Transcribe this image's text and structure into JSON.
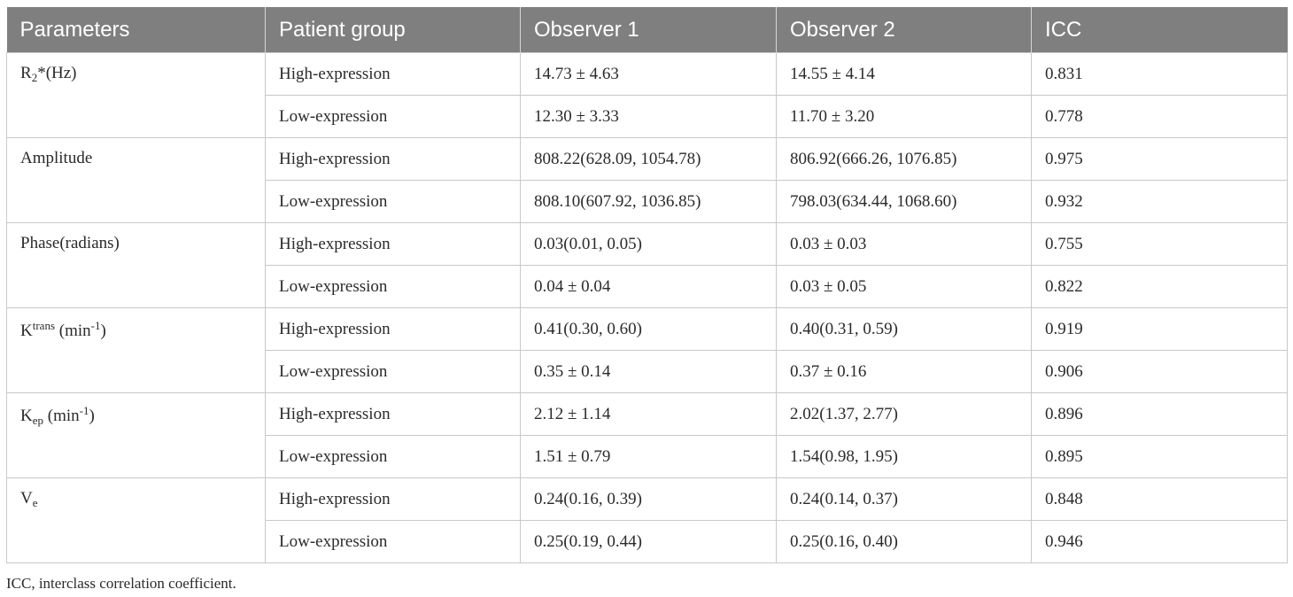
{
  "table": {
    "headers": [
      "Parameters",
      "Patient group",
      "Observer 1",
      "Observer 2",
      "ICC"
    ],
    "params": [
      {
        "base": "R",
        "sub": "2",
        "sup": "",
        "suffix": "*(Hz)"
      },
      {
        "base": "Amplitude",
        "sub": "",
        "sup": "",
        "suffix": ""
      },
      {
        "base": "Phase(radians)",
        "sub": "",
        "sup": "",
        "suffix": ""
      },
      {
        "base": "K",
        "sub": "",
        "sup": "trans",
        "suffix": " (min",
        "sup2": "-1",
        "suffix2": ")"
      },
      {
        "base": "K",
        "sub": "ep",
        "sup": "",
        "suffix": " (min",
        "sup2": "-1",
        "suffix2": ")"
      },
      {
        "base": "V",
        "sub": "e",
        "sup": "",
        "suffix": ""
      }
    ],
    "rows": [
      [
        "High-expression",
        "14.73 ± 4.63",
        "14.55 ± 4.14",
        "0.831"
      ],
      [
        "Low-expression",
        "12.30 ± 3.33",
        "11.70 ± 3.20",
        "0.778"
      ],
      [
        "High-expression",
        "808.22(628.09, 1054.78)",
        "806.92(666.26, 1076.85)",
        "0.975"
      ],
      [
        "Low-expression",
        "808.10(607.92, 1036.85)",
        "798.03(634.44, 1068.60)",
        "0.932"
      ],
      [
        "High-expression",
        "0.03(0.01, 0.05)",
        "0.03 ± 0.03",
        "0.755"
      ],
      [
        "Low-expression",
        "0.04 ± 0.04",
        "0.03 ± 0.05",
        "0.822"
      ],
      [
        "High-expression",
        "0.41(0.30, 0.60)",
        "0.40(0.31, 0.59)",
        "0.919"
      ],
      [
        "Low-expression",
        "0.35 ± 0.14",
        "0.37 ± 0.16",
        "0.906"
      ],
      [
        "High-expression",
        "2.12 ± 1.14",
        "2.02(1.37, 2.77)",
        "0.896"
      ],
      [
        "Low-expression",
        "1.51 ± 0.79",
        "1.54(0.98, 1.95)",
        "0.895"
      ],
      [
        "High-expression",
        "0.24(0.16, 0.39)",
        "0.24(0.14, 0.37)",
        "0.848"
      ],
      [
        "Low-expression",
        "0.25(0.19, 0.44)",
        "0.25(0.16, 0.40)",
        "0.946"
      ]
    ]
  },
  "footnote": "ICC, interclass correlation coefficient."
}
